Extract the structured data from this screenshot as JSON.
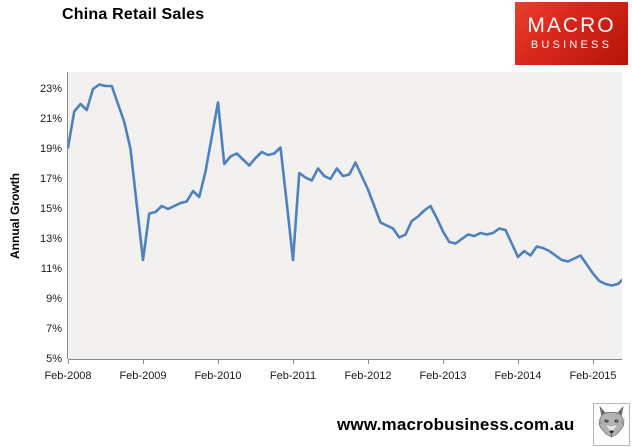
{
  "logo": {
    "line1": "MACRO",
    "line2": "BUSINESS"
  },
  "footer": {
    "url": "www.macrobusiness.com.au"
  },
  "chart_data": {
    "type": "line",
    "title": "China Retail Sales",
    "xlabel": "",
    "ylabel": "Annual Growth",
    "legend": false,
    "grid": false,
    "line_color": "#4F81BD",
    "plot_bg": "#F2F1F0",
    "ylim": [
      5,
      24.1
    ],
    "y_ticks": [
      23,
      21,
      19,
      17,
      15,
      13,
      11,
      9,
      7,
      5
    ],
    "y_tick_labels": [
      "23%",
      "21%",
      "19%",
      "17%",
      "15%",
      "13%",
      "11%",
      "9%",
      "7%",
      "5%"
    ],
    "x_tick_labels": [
      "Feb-2008",
      "Feb-2009",
      "Feb-2010",
      "Feb-2011",
      "Feb-2012",
      "Feb-2013",
      "Feb-2014",
      "Feb-2015"
    ],
    "x_tick_every_n_points": 12,
    "series": [
      {
        "name": "China retail sales annual growth (%)",
        "start": "Feb-2008",
        "freq": "monthly",
        "values": [
          19.1,
          21.5,
          22.0,
          21.6,
          23.0,
          23.3,
          23.2,
          23.2,
          22.0,
          20.8,
          19.0,
          15.3,
          11.6,
          14.7,
          14.8,
          15.2,
          15.0,
          15.2,
          15.4,
          15.5,
          16.2,
          15.8,
          17.5,
          19.8,
          22.1,
          18.0,
          18.5,
          18.7,
          18.3,
          17.9,
          18.4,
          18.8,
          18.6,
          18.7,
          19.1,
          15.4,
          11.6,
          17.4,
          17.1,
          16.9,
          17.7,
          17.2,
          17.0,
          17.7,
          17.2,
          17.3,
          18.1,
          17.2,
          16.3,
          15.2,
          14.1,
          13.9,
          13.7,
          13.1,
          13.3,
          14.2,
          14.5,
          14.9,
          15.2,
          14.4,
          13.5,
          12.8,
          12.7,
          13.0,
          13.3,
          13.2,
          13.4,
          13.3,
          13.4,
          13.7,
          13.6,
          12.7,
          11.8,
          12.2,
          11.9,
          12.5,
          12.4,
          12.2,
          11.9,
          11.6,
          11.5,
          11.7,
          11.9,
          11.3,
          10.7,
          10.2,
          10.0,
          9.9,
          10.0,
          10.4
        ]
      }
    ]
  }
}
